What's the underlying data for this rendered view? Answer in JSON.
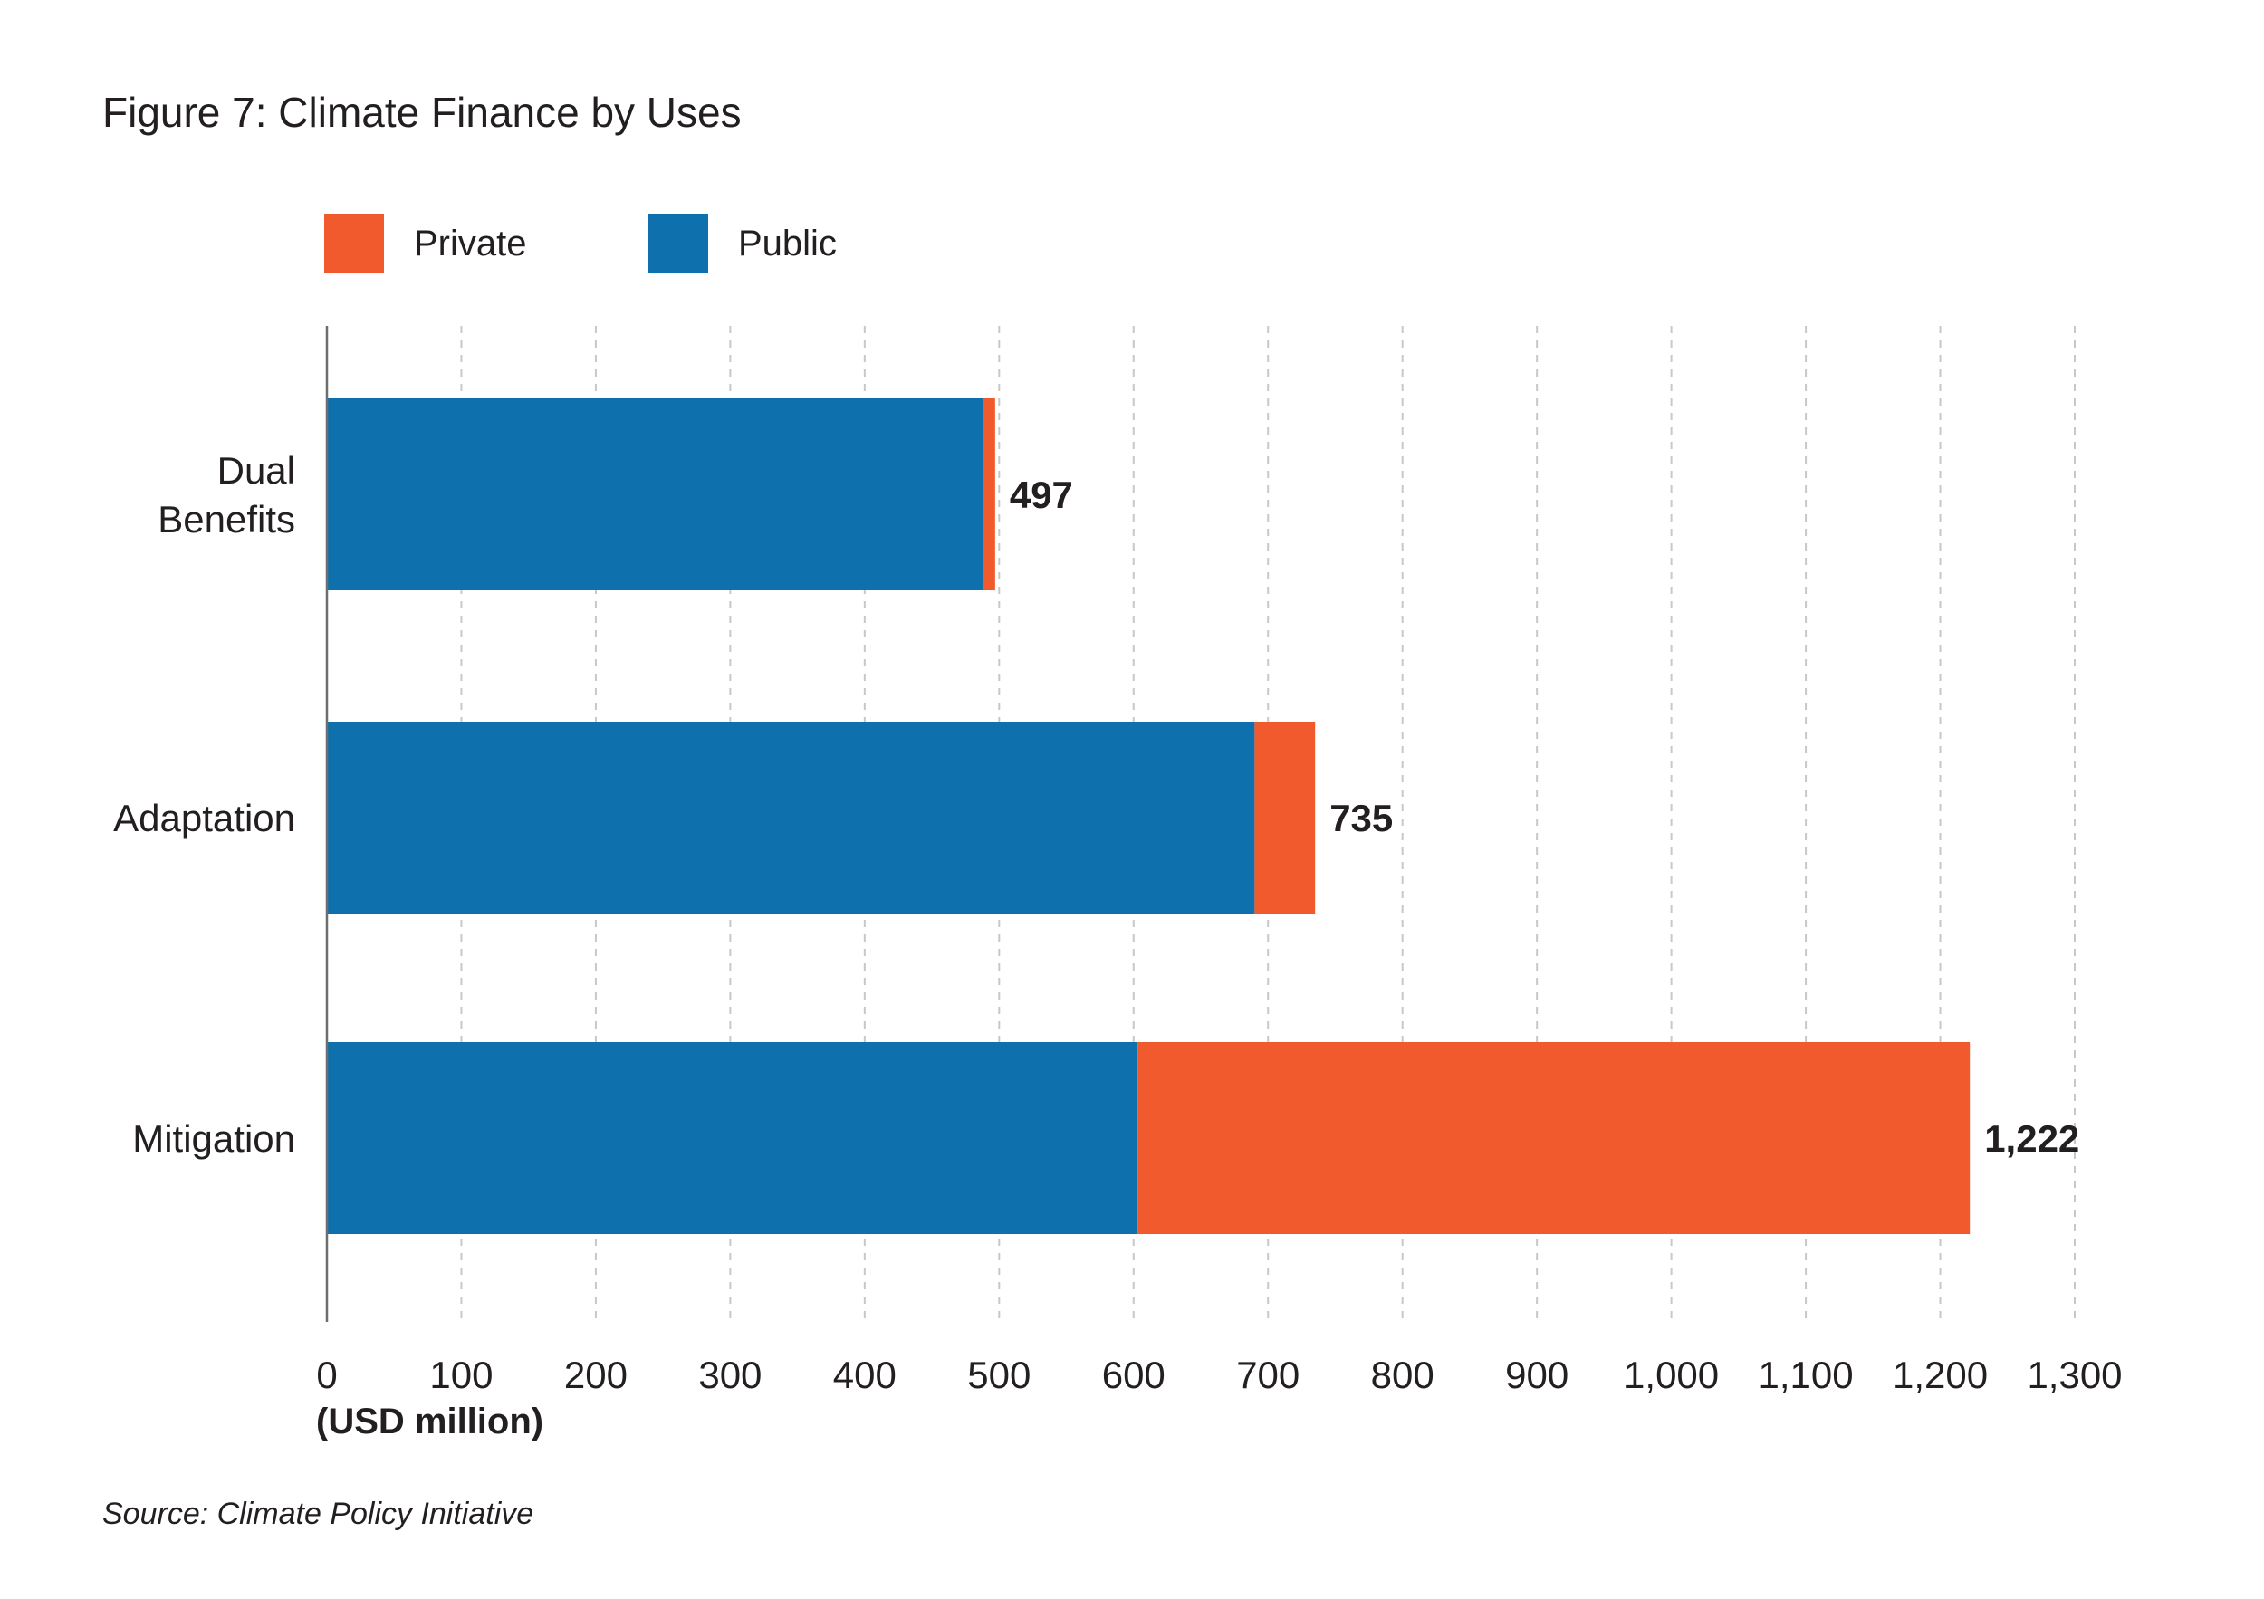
{
  "chart_data": {
    "type": "bar",
    "orientation": "horizontal",
    "stacked": true,
    "title": "Figure 7: Climate Finance by Uses",
    "categories": [
      [
        "Dual",
        "Benefits"
      ],
      [
        "Adaptation"
      ],
      [
        "Mitigation"
      ]
    ],
    "series": [
      {
        "name": "Public",
        "color": "#0e71ad",
        "values": [
          488,
          690,
          603
        ]
      },
      {
        "name": "Private",
        "color": "#f15a2c",
        "values": [
          9,
          45,
          619
        ]
      }
    ],
    "totals": [
      497,
      735,
      1222
    ],
    "total_labels": [
      "497",
      "735",
      "1,222"
    ],
    "legend_order": [
      "Private",
      "Public"
    ],
    "legend_position": "top-left",
    "xlim": [
      0,
      1300
    ],
    "xticks": [
      0,
      100,
      200,
      300,
      400,
      500,
      600,
      700,
      800,
      900,
      1000,
      1100,
      1200,
      1300
    ],
    "xtick_labels": [
      "0",
      "100",
      "200",
      "300",
      "400",
      "500",
      "600",
      "700",
      "800",
      "900",
      "1,000",
      "1,100",
      "1,200",
      "1,300"
    ],
    "xlabel": "(USD million)",
    "grid": "vertical dashed",
    "source": "Source: Climate Policy Initiative"
  }
}
